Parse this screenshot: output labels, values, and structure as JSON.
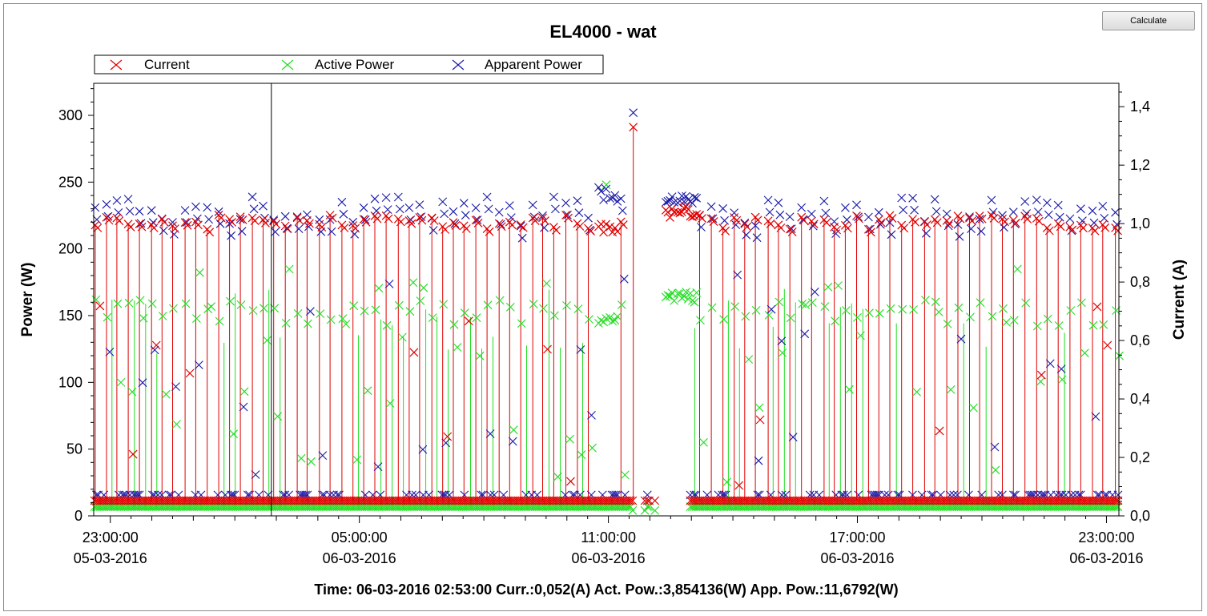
{
  "toolbar": {
    "calculate_label": "Calculate"
  },
  "status_line": "Time: 06-03-2016 02:53:00 Curr.:0,052(A) Act. Pow.:3,854136(W) App. Pow.:11,6792(W)",
  "colors": {
    "current": "#e00000",
    "active_power": "#22dd22",
    "apparent_power": "#1a1aa8",
    "cursor": "#000000",
    "axis": "#000000",
    "background": "#ffffff"
  },
  "chart_data": {
    "type": "scatter",
    "title": "EL4000 - wat",
    "legend": [
      {
        "name": "Current",
        "color": "#e00000"
      },
      {
        "name": "Active Power",
        "color": "#22dd22"
      },
      {
        "name": "Apparent Power",
        "color": "#1a1aa8"
      }
    ],
    "legend_position": "top-left",
    "ylabel_left": "Power (W)",
    "ylabel_right": "Current (A)",
    "ylim_left": [
      0,
      324
    ],
    "ylim_right": [
      0,
      1.48
    ],
    "left_ticks": [
      {
        "value": 0,
        "label": "0"
      },
      {
        "value": 50,
        "label": "50"
      },
      {
        "value": 100,
        "label": "100"
      },
      {
        "value": 150,
        "label": "150"
      },
      {
        "value": 200,
        "label": "200"
      },
      {
        "value": 250,
        "label": "250"
      },
      {
        "value": 300,
        "label": "300"
      }
    ],
    "right_ticks": [
      {
        "value": 0,
        "label": "0,0"
      },
      {
        "value": 0.2,
        "label": "0,2"
      },
      {
        "value": 0.4,
        "label": "0,4"
      },
      {
        "value": 0.6,
        "label": "0,6"
      },
      {
        "value": 0.8,
        "label": "0,8"
      },
      {
        "value": 1.0,
        "label": "1,0"
      },
      {
        "value": 1.2,
        "label": "1,2"
      },
      {
        "value": 1.4,
        "label": "1,4"
      }
    ],
    "x_range_hours": [
      22.6,
      47.3
    ],
    "x_ticks": [
      {
        "hour": 23,
        "time": "23:00:00",
        "date": "05-03-2016"
      },
      {
        "hour": 29,
        "time": "05:00:00",
        "date": "06-03-2016"
      },
      {
        "hour": 35,
        "time": "11:00:00",
        "date": "06-03-2016"
      },
      {
        "hour": 41,
        "time": "17:00:00",
        "date": "06-03-2016"
      },
      {
        "hour": 47,
        "time": "23:00:00",
        "date": "06-03-2016"
      }
    ],
    "cursor_hour": 26.88,
    "series": [
      {
        "name": "Current",
        "units": "A",
        "off_level": 0.052,
        "on_level": 1.0,
        "peak": 1.33,
        "cycle_hours": 0.27
      },
      {
        "name": "Active Power",
        "units": "W",
        "off_level": 3.85,
        "on_level": 150,
        "peak": 248
      },
      {
        "name": "Apparent Power",
        "units": "W",
        "off_level": 11.68,
        "on_level": 220,
        "peak": 302
      }
    ]
  }
}
